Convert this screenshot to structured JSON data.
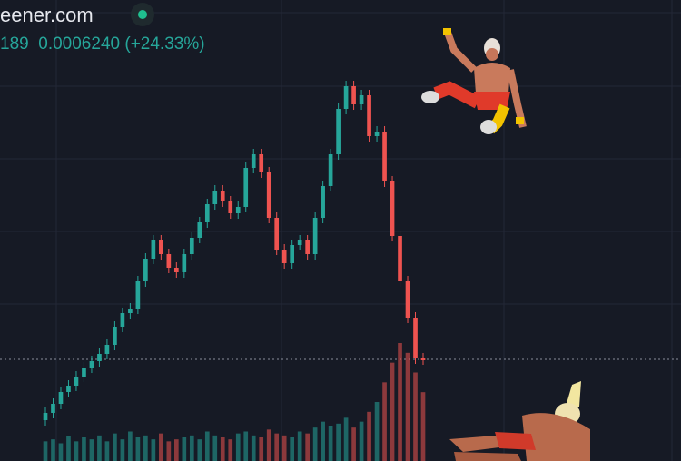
{
  "header": {
    "site": "eener.com",
    "live_indicator_color": "#1fbf8f",
    "ohlc_prefix": "189",
    "price": "0.0006240",
    "change": "(+24.33%)"
  },
  "colors": {
    "background": "#161a25",
    "up": "#26a69a",
    "down": "#ef5350",
    "grid": "#232836"
  },
  "chart_data": {
    "type": "candlestick",
    "current_price_line": 0.000624,
    "grid": true,
    "close": [
      0.0004765,
      0.0005015,
      0.000534,
      0.0005515,
      0.0005765,
      0.0006015,
      0.000619,
      0.000639,
      0.000664,
      0.000714,
      0.0007515,
      0.000764,
      0.000839,
      0.0009015,
      0.0009515,
      0.000914,
      0.0008765,
      0.000864,
      0.000914,
      0.000959,
      0.0010015,
      0.0010515,
      0.001089,
      0.001059,
      0.0010265,
      0.001044,
      0.0011515,
      0.001189,
      0.001139,
      0.001014,
      0.0009265,
      0.000889,
      0.000939,
      0.0009515,
      0.000914,
      0.001014,
      0.0011015,
      0.001189,
      0.001314,
      0.0013765,
      0.0013265,
      0.0013515,
      0.001239,
      0.0012515,
      0.001114,
      0.000964,
      0.000839,
      0.000739,
      0.0006265,
      0.000624
    ],
    "volume": [
      20,
      22,
      18,
      25,
      20,
      24,
      22,
      26,
      20,
      28,
      22,
      30,
      24,
      26,
      22,
      28,
      20,
      22,
      24,
      26,
      22,
      30,
      26,
      24,
      22,
      28,
      30,
      26,
      24,
      32,
      28,
      26,
      24,
      30,
      28,
      34,
      40,
      36,
      38,
      44,
      34,
      40,
      50,
      60,
      80,
      100,
      120,
      110,
      90,
      70
    ]
  },
  "decorations": [
    "wrestler-jumping",
    "wrestler-falling"
  ]
}
